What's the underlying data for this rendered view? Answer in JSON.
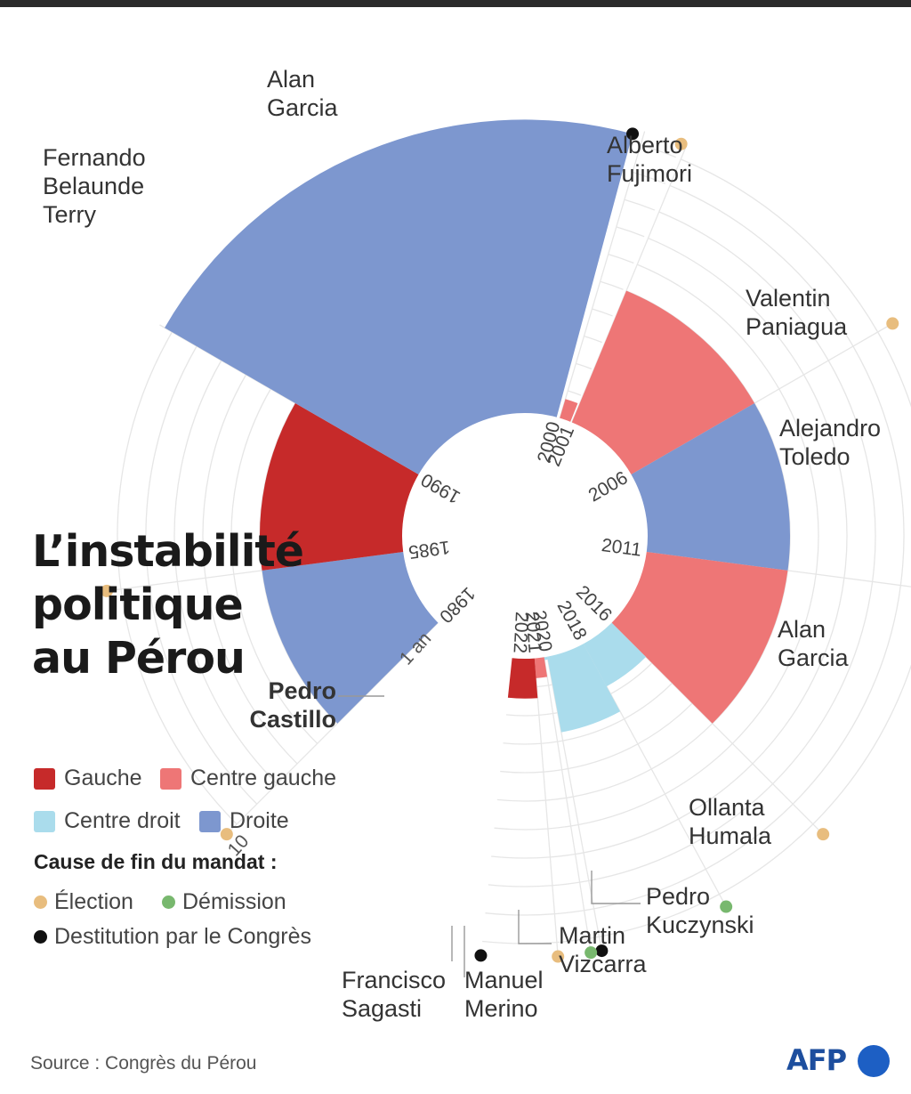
{
  "title": {
    "line1": "L’instabilité",
    "line2": "politique",
    "line3": "au Pérou"
  },
  "colors": {
    "Gauche": "#c62a2a",
    "Centre gauche": "#ee7676",
    "Centre droit": "#aadcec",
    "Droite": "#7d97cf",
    "Élection": "#e8bd7e",
    "Démission": "#78b86e",
    "Destitution par le Congrès": "#111111",
    "grid": "#e6e6e6"
  },
  "legend": {
    "parties": [
      "Gauche",
      "Centre gauche",
      "Centre droit",
      "Droite"
    ],
    "causes_title": "Cause de fin du mandat :",
    "causes": [
      "Élection",
      "Démission",
      "Destitution par le Congrès"
    ]
  },
  "source": "Source : Congrès du Pérou",
  "logo": "AFP",
  "chart_data": {
    "type": "radial-bar",
    "title": "L’instabilité politique au Pérou",
    "radial_axis": {
      "labels": [
        "1 an",
        "10"
      ],
      "unit": "années au pouvoir",
      "max": 10
    },
    "start_years": [
      "1980",
      "1985",
      "1990",
      "2000",
      "2001",
      "2006",
      "2011",
      "2016",
      "2018",
      "2020",
      "2021",
      "2022"
    ],
    "presidents": [
      {
        "name": "Fernando Belaunde Terry",
        "label_lines": [
          "Fernando",
          "Belaunde",
          "Terry"
        ],
        "start": 1980,
        "end": 1985,
        "years": 5,
        "party": "Droite",
        "cause": "Élection"
      },
      {
        "name": "Alan Garcia",
        "label_lines": [
          "Alan",
          "Garcia"
        ],
        "start": 1985,
        "end": 1990,
        "years": 5,
        "party": "Gauche",
        "cause": "Élection"
      },
      {
        "name": "Alberto Fujimori",
        "label_lines": [
          "Alberto",
          "Fujimori"
        ],
        "start": 1990,
        "end": 2000,
        "years": 10.3,
        "party": "Droite",
        "cause": "Destitution par le Congrès"
      },
      {
        "name": "Valentin Paniagua",
        "label_lines": [
          "Valentin",
          "Paniagua"
        ],
        "start": 2000,
        "end": 2001,
        "years": 0.7,
        "party": "Centre gauche",
        "cause": "Élection"
      },
      {
        "name": "Alejandro Toledo",
        "label_lines": [
          "Alejandro",
          "Toledo"
        ],
        "start": 2001,
        "end": 2006,
        "years": 5,
        "party": "Centre gauche",
        "cause": "Élection"
      },
      {
        "name": "Alan Garcia",
        "label_lines": [
          "Alan",
          "Garcia"
        ],
        "start": 2006,
        "end": 2011,
        "years": 5,
        "party": "Droite",
        "cause": "Élection"
      },
      {
        "name": "Ollanta Humala",
        "label_lines": [
          "Ollanta",
          "Humala"
        ],
        "start": 2011,
        "end": 2016,
        "years": 5,
        "party": "Centre gauche",
        "cause": "Élection"
      },
      {
        "name": "Pedro Kuczynski",
        "label_lines": [
          "Pedro",
          "Kuczynski"
        ],
        "start": 2016,
        "end": 2018,
        "years": 1.7,
        "party": "Centre droit",
        "cause": "Démission"
      },
      {
        "name": "Martin Vizcarra",
        "label_lines": [
          "Martin",
          "Vizcarra"
        ],
        "start": 2018,
        "end": 2020,
        "years": 2.7,
        "party": "Centre droit",
        "cause": "Destitution par le Congrès"
      },
      {
        "name": "Manuel Merino",
        "label_lines": [
          "Manuel",
          "Merino"
        ],
        "start": 2020,
        "end": 2020,
        "years": 0.1,
        "party": "Centre droit",
        "cause": "Démission"
      },
      {
        "name": "Francisco Sagasti",
        "label_lines": [
          "Francisco",
          "Sagasti"
        ],
        "start": 2020,
        "end": 2021,
        "years": 0.7,
        "party": "Centre gauche",
        "cause": "Élection"
      },
      {
        "name": "Pedro Castillo",
        "label_lines": [
          "Pedro",
          "Castillo"
        ],
        "start": 2021,
        "end": 2022,
        "years": 1.4,
        "party": "Gauche",
        "cause": "Destitution par le Congrès"
      }
    ]
  }
}
